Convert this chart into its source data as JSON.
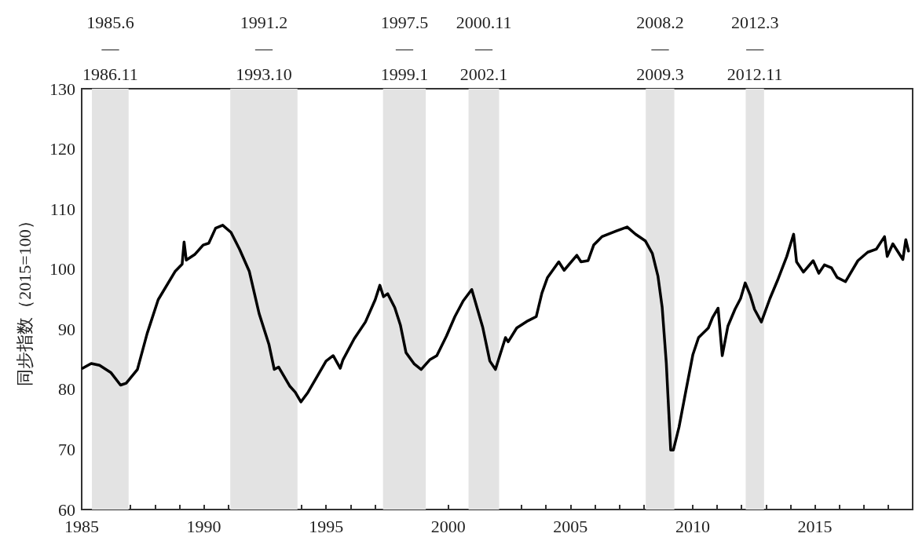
{
  "chart_data": {
    "type": "line",
    "ylabel": "同步指数（2015=100）",
    "marker": "none",
    "xlim": [
      1985,
      2019
    ],
    "xticks": [
      1985,
      {
        "value": 1986,
        "label": null
      },
      {
        "value": 1987,
        "label": null
      },
      {
        "value": 1988,
        "label": null
      },
      {
        "value": 1989,
        "label": null
      },
      1990,
      {
        "value": 1991,
        "label": null
      },
      {
        "value": 1992,
        "label": null
      },
      {
        "value": 1993,
        "label": null
      },
      {
        "value": 1994,
        "label": null
      },
      1995,
      {
        "value": 1996,
        "label": null
      },
      {
        "value": 1997,
        "label": null
      },
      {
        "value": 1998,
        "label": null
      },
      {
        "value": 1999,
        "label": null
      },
      2000,
      {
        "value": 2001,
        "label": null
      },
      {
        "value": 2002,
        "label": null
      },
      {
        "value": 2003,
        "label": null
      },
      {
        "value": 2004,
        "label": null
      },
      2005,
      {
        "value": 2006,
        "label": null
      },
      {
        "value": 2007,
        "label": null
      },
      {
        "value": 2008,
        "label": null
      },
      {
        "value": 2009,
        "label": null
      },
      2010,
      {
        "value": 2011,
        "label": null
      },
      {
        "value": 2012,
        "label": null
      },
      {
        "value": 2013,
        "label": null
      },
      {
        "value": 2014,
        "label": null
      },
      2015,
      {
        "value": 2016,
        "label": null
      },
      {
        "value": 2017,
        "label": null
      },
      {
        "value": 2018,
        "label": null
      }
    ],
    "ylim": [
      60,
      130
    ],
    "yticks": [
      60,
      70,
      80,
      90,
      100,
      110,
      120,
      130
    ],
    "series": [
      {
        "color": "#000000",
        "x": [
          1985.04,
          1985.39,
          1985.73,
          1986.19,
          1986.59,
          1986.82,
          1987.28,
          1987.68,
          1988.13,
          1988.82,
          1989.11,
          1989.19,
          1989.28,
          1989.62,
          1989.97,
          1990.2,
          1990.48,
          1990.77,
          1991.11,
          1991.46,
          1991.86,
          1992.26,
          1992.66,
          1992.88,
          1993.06,
          1993.52,
          1993.74,
          1993.97,
          1994.26,
          1994.66,
          1995.0,
          1995.29,
          1995.58,
          1995.69,
          1996.15,
          1996.61,
          1997.01,
          1997.2,
          1997.35,
          1997.52,
          1997.81,
          1998.04,
          1998.27,
          1998.61,
          1998.89,
          1999.24,
          1999.53,
          1999.93,
          2000.27,
          2000.61,
          2000.96,
          2001.41,
          2001.7,
          2001.93,
          2002.34,
          2002.45,
          2002.8,
          2003.26,
          2003.6,
          2003.83,
          2004.06,
          2004.52,
          2004.74,
          2005.26,
          2005.43,
          2005.72,
          2005.95,
          2006.29,
          2006.86,
          2007.32,
          2007.66,
          2008.06,
          2008.35,
          2008.58,
          2008.75,
          2008.92,
          2009.1,
          2009.21,
          2009.44,
          2009.72,
          2010.01,
          2010.24,
          2010.64,
          2010.81,
          2011.04,
          2011.21,
          2011.44,
          2011.73,
          2011.96,
          2012.15,
          2012.36,
          2012.53,
          2012.81,
          2013.16,
          2013.5,
          2013.85,
          2014.13,
          2014.25,
          2014.53,
          2014.93,
          2015.16,
          2015.39,
          2015.68,
          2015.91,
          2016.25,
          2016.76,
          2017.16,
          2017.51,
          2017.85,
          2017.96,
          2018.19,
          2018.6,
          2018.72,
          2018.83
        ],
        "values": [
          83.5,
          84.3,
          84.0,
          82.8,
          80.7,
          81.0,
          83.3,
          89.3,
          94.9,
          99.6,
          100.8,
          104.5,
          101.5,
          102.4,
          104.0,
          104.3,
          106.8,
          107.3,
          106.1,
          103.3,
          99.6,
          92.6,
          87.5,
          83.3,
          83.7,
          80.5,
          79.5,
          77.9,
          79.5,
          82.3,
          84.7,
          85.6,
          83.5,
          84.9,
          88.4,
          91.2,
          94.9,
          97.3,
          95.4,
          95.9,
          93.6,
          90.7,
          86.1,
          84.2,
          83.3,
          84.9,
          85.6,
          88.9,
          92.1,
          94.7,
          96.6,
          90.3,
          84.7,
          83.3,
          88.6,
          87.9,
          90.2,
          91.4,
          92.1,
          96.0,
          98.6,
          101.2,
          99.8,
          102.3,
          101.2,
          101.4,
          104.0,
          105.4,
          106.3,
          107.0,
          105.8,
          104.7,
          102.6,
          98.8,
          93.7,
          84.4,
          69.9,
          69.9,
          73.7,
          79.7,
          85.8,
          88.6,
          90.2,
          91.9,
          93.5,
          85.6,
          90.5,
          93.3,
          95.1,
          97.7,
          95.6,
          93.3,
          91.2,
          95.1,
          98.4,
          102.1,
          105.8,
          101.2,
          99.5,
          101.4,
          99.3,
          100.7,
          100.2,
          98.6,
          97.9,
          101.4,
          102.8,
          103.3,
          105.4,
          102.1,
          104.2,
          101.6,
          104.9,
          103.0
        ]
      }
    ],
    "bands": [
      {
        "axis": "x",
        "from": 1985.42,
        "to": 1986.92,
        "label": "1985.6\n—\n1986.11",
        "color": "#e3e3e3"
      },
      {
        "axis": "x",
        "from": 1991.08,
        "to": 1993.83,
        "label": "1991.2\n—\n1993.10",
        "color": "#e3e3e3"
      },
      {
        "axis": "x",
        "from": 1997.33,
        "to": 1999.08,
        "label": "1997.5\n—\n1999.1",
        "color": "#e3e3e3"
      },
      {
        "axis": "x",
        "from": 2000.83,
        "to": 2002.08,
        "label": "2000.11\n—\n2002.1",
        "color": "#e3e3e3"
      },
      {
        "axis": "x",
        "from": 2008.08,
        "to": 2009.25,
        "label": "2008.2\n—\n2009.3",
        "color": "#e3e3e3"
      },
      {
        "axis": "x",
        "from": 2012.17,
        "to": 2012.92,
        "label": "2012.3\n—\n2012.11",
        "color": "#e3e3e3"
      }
    ]
  }
}
